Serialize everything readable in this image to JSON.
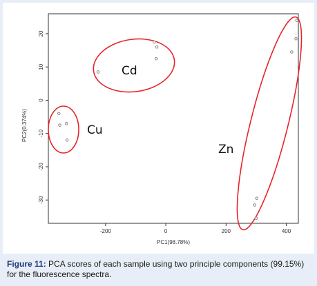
{
  "chart_data": {
    "type": "scatter",
    "xlabel": "PC1(98.78%)",
    "ylabel": "PC2(0.374%)",
    "xlim": [
      -390,
      440
    ],
    "ylim": [
      -37,
      26
    ],
    "xticks": [
      -200,
      0,
      200,
      400
    ],
    "yticks": [
      20,
      10,
      0,
      -10,
      -20,
      -30
    ],
    "xtick_labels": [
      "-200",
      "0",
      "200",
      "400"
    ],
    "ytick_labels": [
      "20",
      "10",
      "0",
      "-10",
      "-20",
      "-30"
    ],
    "grid": false,
    "point_color": "#888888",
    "ellipse_color": "#e8232a",
    "groups": [
      {
        "label": "Cu",
        "points": [
          {
            "x": -355,
            "y": -4
          },
          {
            "x": -352,
            "y": -7.5
          },
          {
            "x": -330,
            "y": -7
          },
          {
            "x": -328,
            "y": -12
          }
        ]
      },
      {
        "label": "Cd",
        "points": [
          {
            "x": -225,
            "y": 8.5
          },
          {
            "x": -38,
            "y": 17.5
          },
          {
            "x": -30,
            "y": 16
          },
          {
            "x": -32,
            "y": 12.5
          }
        ]
      },
      {
        "label": "Zn",
        "points": [
          {
            "x": 435,
            "y": 24
          },
          {
            "x": 432,
            "y": 18.5
          },
          {
            "x": 418,
            "y": 14.5
          },
          {
            "x": 295,
            "y": -31.5
          },
          {
            "x": 302,
            "y": -29.5
          },
          {
            "x": 300,
            "y": -35.5
          }
        ]
      }
    ]
  },
  "caption": {
    "label": "Figure 11:",
    "text": " PCA scores of each sample using two principle components (99.15%) for the fluorescence spectra."
  }
}
